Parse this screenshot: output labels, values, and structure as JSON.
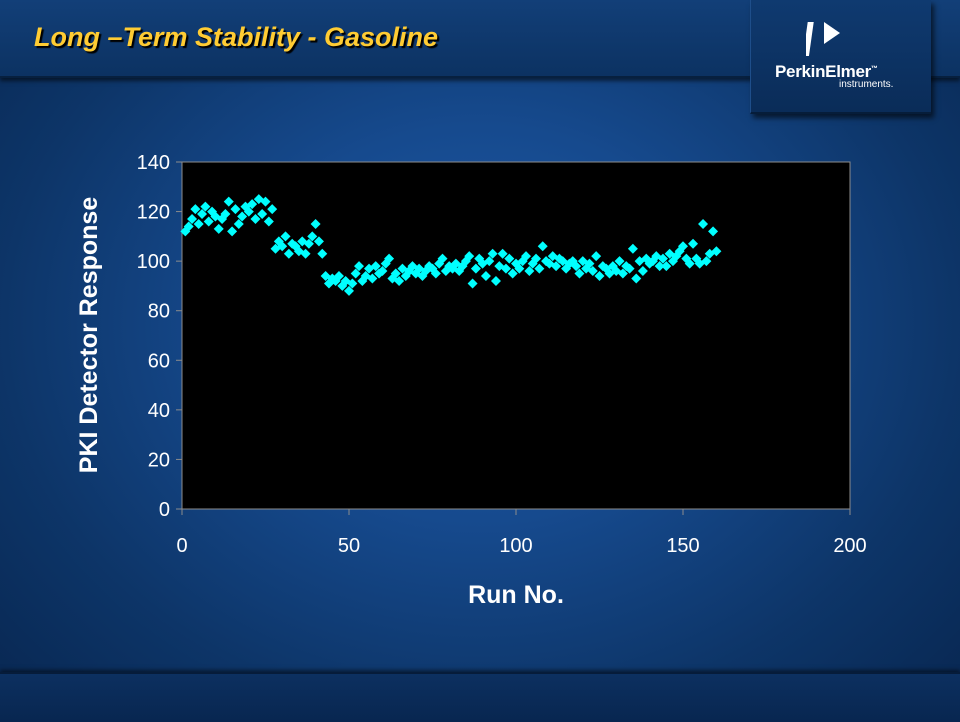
{
  "slide": {
    "title": "Long –Term Stability - Gasoline"
  },
  "logo": {
    "name": "PerkinElmer",
    "tm": "™",
    "sub": "instruments."
  },
  "colors": {
    "title": "#ffcc33",
    "marker": "#00ffff",
    "plot_bg": "#000000",
    "axis_text": "#ffffff"
  },
  "chart_data": {
    "type": "scatter",
    "title": "",
    "xlabel": "Run No.",
    "ylabel": "PKI Detector Response",
    "xlim": [
      0,
      200
    ],
    "ylim": [
      0,
      140
    ],
    "xticks": [
      0,
      50,
      100,
      150,
      200
    ],
    "yticks": [
      0,
      20,
      40,
      60,
      80,
      100,
      120,
      140
    ],
    "grid": false,
    "legend": "none",
    "marker": "diamond",
    "x": [
      1,
      2,
      3,
      4,
      5,
      6,
      7,
      8,
      9,
      10,
      11,
      12,
      13,
      14,
      15,
      16,
      17,
      18,
      19,
      20,
      21,
      22,
      23,
      24,
      25,
      26,
      27,
      28,
      29,
      30,
      31,
      32,
      33,
      34,
      35,
      36,
      37,
      38,
      39,
      40,
      41,
      42,
      43,
      44,
      45,
      46,
      47,
      48,
      49,
      50,
      51,
      52,
      53,
      54,
      55,
      56,
      57,
      58,
      59,
      60,
      61,
      62,
      63,
      64,
      65,
      66,
      67,
      68,
      69,
      70,
      71,
      72,
      73,
      74,
      75,
      76,
      77,
      78,
      79,
      80,
      81,
      82,
      83,
      84,
      85,
      86,
      87,
      88,
      89,
      90,
      91,
      92,
      93,
      94,
      95,
      96,
      97,
      98,
      99,
      100,
      101,
      102,
      103,
      104,
      105,
      106,
      107,
      108,
      109,
      110,
      111,
      112,
      113,
      114,
      115,
      116,
      117,
      118,
      119,
      120,
      121,
      122,
      123,
      124,
      125,
      126,
      127,
      128,
      129,
      130,
      131,
      132,
      133,
      134,
      135,
      136,
      137,
      138,
      139,
      140,
      141,
      142,
      143,
      144,
      145,
      146,
      147,
      148,
      149,
      150,
      151,
      152,
      153,
      154,
      155,
      156,
      157,
      158,
      159,
      160
    ],
    "y": [
      112,
      114,
      117,
      121,
      115,
      119,
      122,
      116,
      120,
      118,
      113,
      117,
      119,
      124,
      112,
      121,
      115,
      118,
      122,
      120,
      123,
      117,
      125,
      119,
      124,
      116,
      121,
      105,
      108,
      106,
      110,
      103,
      107,
      106,
      104,
      108,
      103,
      107,
      110,
      115,
      108,
      103,
      94,
      91,
      93,
      92,
      94,
      90,
      92,
      88,
      91,
      95,
      98,
      92,
      94,
      97,
      93,
      98,
      95,
      96,
      99,
      101,
      93,
      95,
      92,
      97,
      94,
      96,
      98,
      95,
      97,
      94,
      96,
      98,
      97,
      95,
      99,
      101,
      96,
      98,
      97,
      99,
      96,
      98,
      100,
      102,
      91,
      97,
      101,
      99,
      94,
      100,
      103,
      92,
      98,
      103,
      97,
      101,
      95,
      99,
      97,
      100,
      102,
      96,
      99,
      101,
      97,
      106,
      100,
      99,
      102,
      98,
      101,
      100,
      97,
      99,
      100,
      98,
      95,
      100,
      97,
      99,
      96,
      102,
      94,
      98,
      97,
      95,
      98,
      96,
      100,
      95,
      98,
      97,
      105,
      93,
      100,
      96,
      101,
      99,
      100,
      102,
      98,
      101,
      98,
      103,
      100,
      102,
      104,
      106,
      101,
      99,
      107,
      101,
      99,
      115,
      100,
      103,
      112,
      104
    ]
  }
}
